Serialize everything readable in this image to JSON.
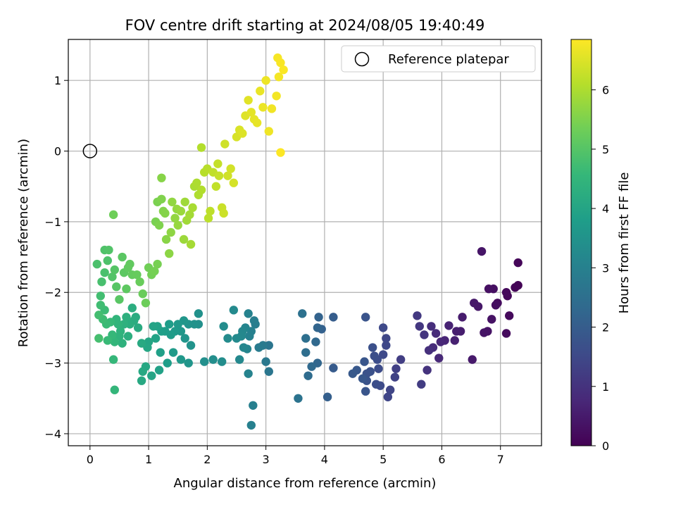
{
  "chart_data": {
    "type": "scatter",
    "title": "FOV centre drift starting at 2024/08/05 19:40:49",
    "xlabel": "Angular distance from reference (arcmin)",
    "ylabel": "Rotation from reference (arcmin)",
    "xlim": [
      -0.37,
      7.7
    ],
    "ylim": [
      -4.17,
      1.58
    ],
    "xticks": [
      "0",
      "1",
      "2",
      "3",
      "4",
      "5",
      "6",
      "7"
    ],
    "yticks": [
      "−4",
      "−3",
      "−2",
      "−1",
      "0",
      "1"
    ],
    "grid": true,
    "legend": {
      "position": "top-right",
      "label": "Reference platepar"
    },
    "reference_point": {
      "x": 0,
      "y": 0
    },
    "colorbar": {
      "label": "Hours from first FF file",
      "range": [
        0,
        6.85
      ],
      "ticks": [
        "0",
        "1",
        "2",
        "3",
        "4",
        "5",
        "6"
      ],
      "colormap": "viridis"
    },
    "points": [
      [
        7.3,
        -1.9,
        0.05
      ],
      [
        7.25,
        -1.93,
        0.07
      ],
      [
        7.3,
        -1.58,
        0.1
      ],
      [
        7.12,
        -2.05,
        0.12
      ],
      [
        7.1,
        -2.0,
        0.15
      ],
      [
        7.15,
        -2.33,
        0.17
      ],
      [
        7.1,
        -2.58,
        0.2
      ],
      [
        6.95,
        -2.15,
        0.22
      ],
      [
        6.92,
        -2.18,
        0.25
      ],
      [
        6.88,
        -1.95,
        0.27
      ],
      [
        6.8,
        -1.95,
        0.3
      ],
      [
        6.85,
        -2.38,
        0.33
      ],
      [
        6.78,
        -2.55,
        0.35
      ],
      [
        6.72,
        -2.57,
        0.38
      ],
      [
        6.68,
        -1.42,
        0.4
      ],
      [
        6.62,
        -2.2,
        0.43
      ],
      [
        6.55,
        -2.15,
        0.45
      ],
      [
        6.52,
        -2.95,
        0.48
      ],
      [
        6.35,
        -2.35,
        0.52
      ],
      [
        6.32,
        -2.55,
        0.55
      ],
      [
        6.25,
        -2.55,
        0.58
      ],
      [
        6.22,
        -2.68,
        0.62
      ],
      [
        6.12,
        -2.47,
        0.66
      ],
      [
        6.05,
        -2.68,
        0.7
      ],
      [
        5.98,
        -2.7,
        0.74
      ],
      [
        5.95,
        -2.93,
        0.78
      ],
      [
        5.9,
        -2.58,
        0.82
      ],
      [
        5.85,
        -2.78,
        0.86
      ],
      [
        5.82,
        -2.48,
        0.9
      ],
      [
        5.78,
        -2.82,
        0.95
      ],
      [
        5.75,
        -3.1,
        1.0
      ],
      [
        5.7,
        -2.6,
        1.05
      ],
      [
        5.62,
        -2.48,
        1.1
      ],
      [
        5.58,
        -2.33,
        1.15
      ],
      [
        5.65,
        -3.3,
        1.2
      ],
      [
        5.3,
        -2.95,
        1.25
      ],
      [
        5.22,
        -3.08,
        1.3
      ],
      [
        5.2,
        -3.2,
        1.35
      ],
      [
        5.12,
        -3.38,
        1.4
      ],
      [
        5.08,
        -3.48,
        1.42
      ],
      [
        5.05,
        -2.65,
        1.45
      ],
      [
        5.05,
        -2.75,
        1.48
      ],
      [
        5.0,
        -2.5,
        1.5
      ],
      [
        5.0,
        -2.88,
        1.52
      ],
      [
        4.95,
        -3.32,
        1.55
      ],
      [
        4.92,
        -3.08,
        1.58
      ],
      [
        4.9,
        -2.95,
        1.6
      ],
      [
        4.88,
        -3.3,
        1.62
      ],
      [
        4.85,
        -2.9,
        1.65
      ],
      [
        4.82,
        -2.78,
        1.68
      ],
      [
        4.78,
        -3.12,
        1.7
      ],
      [
        4.72,
        -3.15,
        1.72
      ],
      [
        4.72,
        -3.25,
        1.75
      ],
      [
        4.7,
        -2.35,
        1.78
      ],
      [
        4.7,
        -3.4,
        1.8
      ],
      [
        4.68,
        -2.98,
        1.82
      ],
      [
        4.65,
        -3.22,
        1.85
      ],
      [
        4.55,
        -3.1,
        1.87
      ],
      [
        4.48,
        -3.15,
        1.9
      ],
      [
        4.15,
        -3.07,
        1.95
      ],
      [
        4.15,
        -2.35,
        2.0
      ],
      [
        4.05,
        -3.48,
        2.05
      ],
      [
        3.95,
        -2.52,
        2.1
      ],
      [
        3.9,
        -2.35,
        2.15
      ],
      [
        3.88,
        -2.5,
        2.2
      ],
      [
        3.88,
        -3.0,
        2.25
      ],
      [
        3.85,
        -2.7,
        2.3
      ],
      [
        3.78,
        -3.05,
        2.35
      ],
      [
        3.72,
        -3.18,
        2.4
      ],
      [
        3.68,
        -2.85,
        2.45
      ],
      [
        3.68,
        -2.65,
        2.5
      ],
      [
        3.62,
        -2.3,
        2.55
      ],
      [
        3.55,
        -3.5,
        2.6
      ],
      [
        3.05,
        -2.75,
        2.65
      ],
      [
        3.05,
        -3.12,
        2.7
      ],
      [
        3.0,
        -2.98,
        2.75
      ],
      [
        2.95,
        -2.75,
        2.8
      ],
      [
        2.88,
        -2.78,
        2.85
      ],
      [
        2.82,
        -2.45,
        2.9
      ],
      [
        2.8,
        -2.4,
        2.92
      ],
      [
        2.78,
        -3.6,
        2.95
      ],
      [
        2.75,
        -3.88,
        2.98
      ],
      [
        2.75,
        -2.55,
        3.0
      ],
      [
        2.72,
        -2.62,
        3.02
      ],
      [
        2.7,
        -2.3,
        3.05
      ],
      [
        2.7,
        -3.15,
        3.07
      ],
      [
        2.68,
        -2.8,
        3.1
      ],
      [
        2.65,
        -2.5,
        3.12
      ],
      [
        2.62,
        -2.78,
        3.15
      ],
      [
        2.6,
        -2.55,
        3.17
      ],
      [
        2.58,
        -2.62,
        3.2
      ],
      [
        2.55,
        -2.95,
        3.22
      ],
      [
        2.5,
        -2.65,
        3.25
      ],
      [
        2.45,
        -2.25,
        3.27
      ],
      [
        2.35,
        -2.65,
        3.3
      ],
      [
        2.28,
        -2.48,
        3.32
      ],
      [
        2.25,
        -2.98,
        3.35
      ],
      [
        2.1,
        -2.95,
        3.37
      ],
      [
        1.95,
        -2.98,
        3.4
      ],
      [
        1.85,
        -2.45,
        3.42
      ],
      [
        1.85,
        -2.3,
        3.45
      ],
      [
        1.78,
        -2.45,
        3.47
      ],
      [
        1.72,
        -2.75,
        3.5
      ],
      [
        1.68,
        -2.45,
        3.52
      ],
      [
        1.68,
        -3.0,
        3.55
      ],
      [
        1.62,
        -2.65,
        3.57
      ],
      [
        1.6,
        -2.4,
        3.6
      ],
      [
        1.55,
        -2.55,
        3.62
      ],
      [
        1.55,
        -2.95,
        3.65
      ],
      [
        1.5,
        -2.45,
        3.67
      ],
      [
        1.45,
        -2.55,
        3.7
      ],
      [
        1.42,
        -2.85,
        3.72
      ],
      [
        1.38,
        -2.6,
        3.75
      ],
      [
        1.35,
        -2.45,
        3.77
      ],
      [
        1.32,
        -3.0,
        3.8
      ],
      [
        1.28,
        -2.55,
        3.82
      ],
      [
        1.22,
        -2.55,
        3.85
      ],
      [
        1.2,
        -2.85,
        3.87
      ],
      [
        1.18,
        -3.1,
        3.9
      ],
      [
        1.15,
        -2.48,
        3.92
      ],
      [
        1.12,
        -2.65,
        3.95
      ],
      [
        1.08,
        -2.48,
        3.97
      ],
      [
        1.05,
        -3.18,
        4.0
      ],
      [
        1.0,
        -2.7,
        4.02
      ],
      [
        0.98,
        -2.78,
        4.05
      ],
      [
        0.95,
        -3.05,
        4.07
      ],
      [
        0.9,
        -3.12,
        4.1
      ],
      [
        0.88,
        -3.25,
        4.12
      ],
      [
        0.88,
        -2.72,
        4.15
      ],
      [
        0.82,
        -2.5,
        4.17
      ],
      [
        0.78,
        -2.35,
        4.2
      ],
      [
        0.75,
        -2.4,
        4.22
      ],
      [
        0.72,
        -2.22,
        4.25
      ],
      [
        0.68,
        -2.45,
        4.27
      ],
      [
        0.65,
        -2.62,
        4.3
      ],
      [
        0.62,
        -2.35,
        4.32
      ],
      [
        0.58,
        -2.45,
        4.35
      ],
      [
        0.55,
        -2.72,
        4.37
      ],
      [
        0.52,
        -2.55,
        4.4
      ],
      [
        0.5,
        -2.62,
        4.42
      ],
      [
        0.48,
        -2.45,
        4.45
      ],
      [
        0.45,
        -2.38,
        4.47
      ],
      [
        0.42,
        -2.7,
        4.5
      ],
      [
        0.42,
        -3.38,
        4.52
      ],
      [
        0.4,
        -2.95,
        4.55
      ],
      [
        0.38,
        -2.6,
        4.57
      ],
      [
        0.35,
        -2.42,
        4.6
      ],
      [
        0.3,
        -2.68,
        4.62
      ],
      [
        0.28,
        -2.45,
        4.65
      ],
      [
        0.25,
        -2.25,
        4.67
      ],
      [
        0.22,
        -2.38,
        4.7
      ],
      [
        0.18,
        -2.18,
        4.72
      ],
      [
        0.18,
        -2.05,
        4.75
      ],
      [
        0.15,
        -2.32,
        4.77
      ],
      [
        0.15,
        -2.65,
        4.8
      ],
      [
        0.2,
        -1.85,
        4.82
      ],
      [
        0.25,
        -1.72,
        4.85
      ],
      [
        0.12,
        -1.6,
        4.87
      ],
      [
        0.3,
        -1.55,
        4.9
      ],
      [
        0.25,
        -1.4,
        4.92
      ],
      [
        0.32,
        -1.4,
        4.95
      ],
      [
        0.38,
        -1.78,
        4.97
      ],
      [
        0.42,
        -1.68,
        5.0
      ],
      [
        0.45,
        -1.92,
        5.02
      ],
      [
        0.5,
        -2.1,
        5.05
      ],
      [
        0.55,
        -1.5,
        5.07
      ],
      [
        0.58,
        -1.72,
        5.1
      ],
      [
        0.62,
        -1.95,
        5.12
      ],
      [
        0.65,
        -1.65,
        5.15
      ],
      [
        0.68,
        -1.6,
        5.17
      ],
      [
        0.72,
        -1.75,
        5.2
      ],
      [
        0.8,
        -1.75,
        5.22
      ],
      [
        0.85,
        -1.85,
        5.25
      ],
      [
        0.9,
        -2.02,
        5.27
      ],
      [
        0.95,
        -2.15,
        5.3
      ],
      [
        0.4,
        -0.9,
        5.32
      ],
      [
        1.0,
        -1.65,
        5.35
      ],
      [
        1.05,
        -1.75,
        5.37
      ],
      [
        1.1,
        -1.7,
        5.4
      ],
      [
        1.15,
        -1.6,
        5.42
      ],
      [
        1.12,
        -1.0,
        5.45
      ],
      [
        1.15,
        -0.72,
        5.47
      ],
      [
        1.18,
        -1.05,
        5.5
      ],
      [
        1.22,
        -0.68,
        5.52
      ],
      [
        1.25,
        -0.85,
        5.55
      ],
      [
        1.28,
        -0.88,
        5.57
      ],
      [
        1.22,
        -0.38,
        5.6
      ],
      [
        1.3,
        -1.25,
        5.62
      ],
      [
        1.35,
        -1.45,
        5.65
      ],
      [
        1.38,
        -1.15,
        5.67
      ],
      [
        1.4,
        -0.72,
        5.7
      ],
      [
        1.45,
        -0.95,
        5.72
      ],
      [
        1.48,
        -0.82,
        5.75
      ],
      [
        1.5,
        -1.05,
        5.77
      ],
      [
        1.55,
        -0.85,
        5.8
      ],
      [
        1.6,
        -1.25,
        5.82
      ],
      [
        1.62,
        -0.72,
        5.85
      ],
      [
        1.65,
        -0.98,
        5.87
      ],
      [
        1.7,
        -0.9,
        5.9
      ],
      [
        1.72,
        -1.32,
        5.92
      ],
      [
        1.75,
        -0.8,
        5.95
      ],
      [
        1.78,
        -0.5,
        5.97
      ],
      [
        1.82,
        -0.45,
        6.0
      ],
      [
        1.85,
        -0.62,
        6.02
      ],
      [
        1.9,
        -0.55,
        6.05
      ],
      [
        1.9,
        0.05,
        6.07
      ],
      [
        1.95,
        -0.3,
        6.1
      ],
      [
        2.0,
        -0.25,
        6.12
      ],
      [
        2.02,
        -0.95,
        6.15
      ],
      [
        2.05,
        -0.85,
        6.17
      ],
      [
        2.1,
        -0.3,
        6.2
      ],
      [
        2.15,
        -0.5,
        6.22
      ],
      [
        2.18,
        -0.18,
        6.25
      ],
      [
        2.2,
        -0.35,
        6.27
      ],
      [
        2.25,
        -0.8,
        6.3
      ],
      [
        2.28,
        -0.88,
        6.32
      ],
      [
        2.3,
        0.1,
        6.35
      ],
      [
        2.35,
        -0.35,
        6.37
      ],
      [
        2.4,
        -0.25,
        6.4
      ],
      [
        2.45,
        -0.45,
        6.42
      ],
      [
        2.5,
        0.2,
        6.45
      ],
      [
        2.55,
        0.3,
        6.47
      ],
      [
        2.6,
        0.25,
        6.5
      ],
      [
        2.65,
        0.5,
        6.52
      ],
      [
        2.7,
        0.72,
        6.55
      ],
      [
        2.75,
        0.55,
        6.57
      ],
      [
        2.8,
        0.45,
        6.6
      ],
      [
        2.85,
        0.4,
        6.62
      ],
      [
        2.9,
        0.85,
        6.64
      ],
      [
        2.95,
        0.62,
        6.66
      ],
      [
        3.0,
        1.0,
        6.68
      ],
      [
        3.05,
        0.28,
        6.7
      ],
      [
        3.1,
        0.6,
        6.72
      ],
      [
        3.18,
        0.78,
        6.74
      ],
      [
        3.22,
        1.05,
        6.76
      ],
      [
        3.2,
        1.32,
        6.78
      ],
      [
        3.25,
        1.25,
        6.8
      ],
      [
        3.3,
        1.15,
        6.82
      ],
      [
        3.25,
        -0.02,
        6.84
      ]
    ]
  }
}
